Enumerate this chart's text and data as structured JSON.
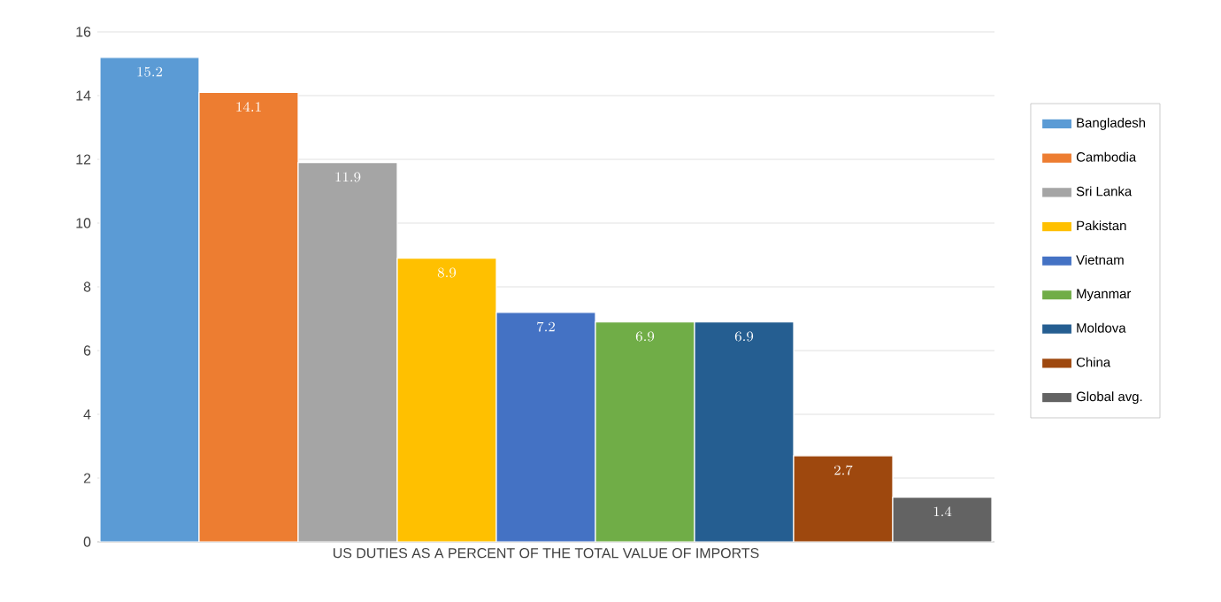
{
  "chart_data": {
    "type": "bar",
    "categories": [
      "US DUTIES AS A PERCENT OF THE TOTAL VALUE OF IMPORTS"
    ],
    "series": [
      {
        "name": "Bangladesh",
        "color": "#5b9bd5",
        "values": [
          15.2
        ]
      },
      {
        "name": "Cambodia",
        "color": "#ed7d31",
        "values": [
          14.1
        ]
      },
      {
        "name": "Sri Lanka",
        "color": "#a5a5a5",
        "values": [
          11.9
        ]
      },
      {
        "name": "Pakistan",
        "color": "#ffc000",
        "values": [
          8.9
        ]
      },
      {
        "name": "Vietnam",
        "color": "#4472c4",
        "values": [
          7.2
        ]
      },
      {
        "name": "Myanmar",
        "color": "#70ad47",
        "values": [
          6.9
        ]
      },
      {
        "name": "Moldova",
        "color": "#255e91",
        "values": [
          6.9
        ]
      },
      {
        "name": "China",
        "color": "#9e480e",
        "values": [
          2.7
        ]
      },
      {
        "name": "Global avg.",
        "color": "#636363",
        "values": [
          1.4
        ]
      }
    ],
    "ylim": [
      0,
      16
    ],
    "yticks": [
      0,
      2,
      4,
      6,
      8,
      10,
      12,
      14,
      16
    ],
    "grid": "y",
    "legend": "right",
    "data_labels": true
  }
}
